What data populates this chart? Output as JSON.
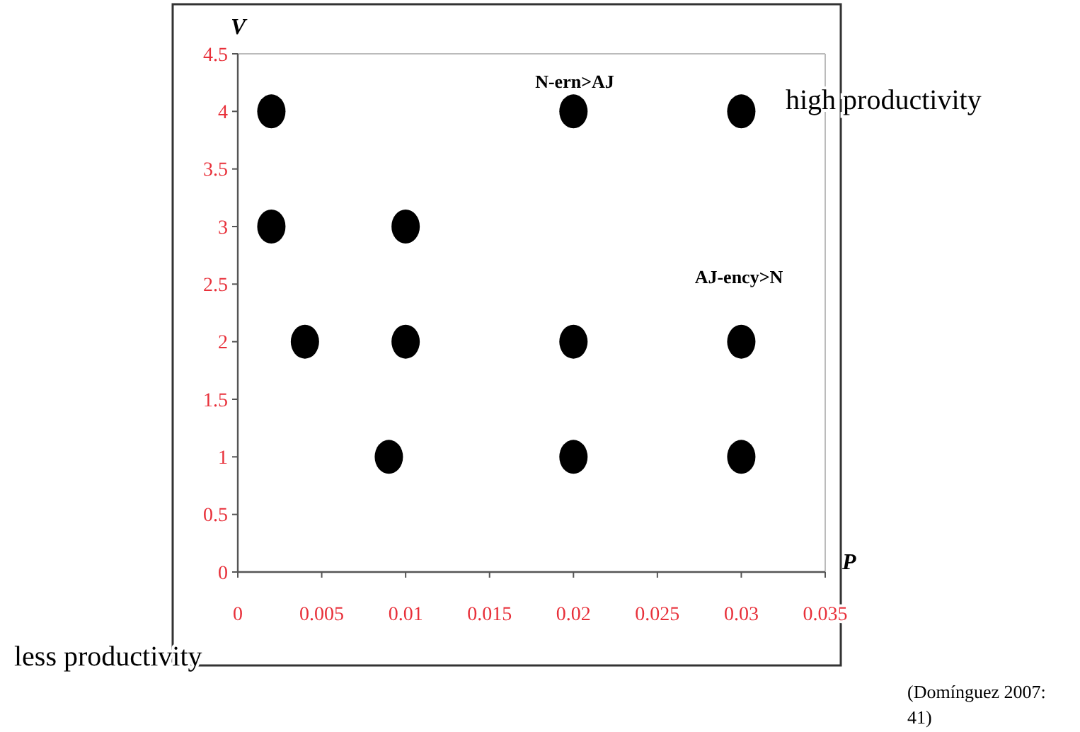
{
  "chart_data": {
    "type": "scatter",
    "xlabel": "P",
    "ylabel": "V",
    "x": [
      0.002,
      0.02,
      0.03,
      0.002,
      0.01,
      0.004,
      0.01,
      0.02,
      0.03,
      0.009,
      0.02,
      0.03
    ],
    "series": [
      {
        "color": "#000000",
        "values": [
          4,
          4,
          4,
          3,
          3,
          2,
          2,
          2,
          2,
          1,
          1,
          1
        ]
      }
    ],
    "xlim": [
      0,
      0.035
    ],
    "xticks": [
      0,
      0.005,
      0.01,
      0.015,
      0.02,
      0.025,
      0.03,
      0.035
    ],
    "ylim": [
      0,
      4.5
    ],
    "yticks": [
      0,
      0.5,
      1,
      1.5,
      2,
      2.5,
      3,
      3.5,
      4,
      4.5
    ],
    "marker": "circle",
    "grid": false,
    "annotations": [
      "N-ern>AJ",
      "AJ-ency>N",
      "high productivity",
      "less productivity",
      "(Domínguez 2007: 41)"
    ]
  }
}
